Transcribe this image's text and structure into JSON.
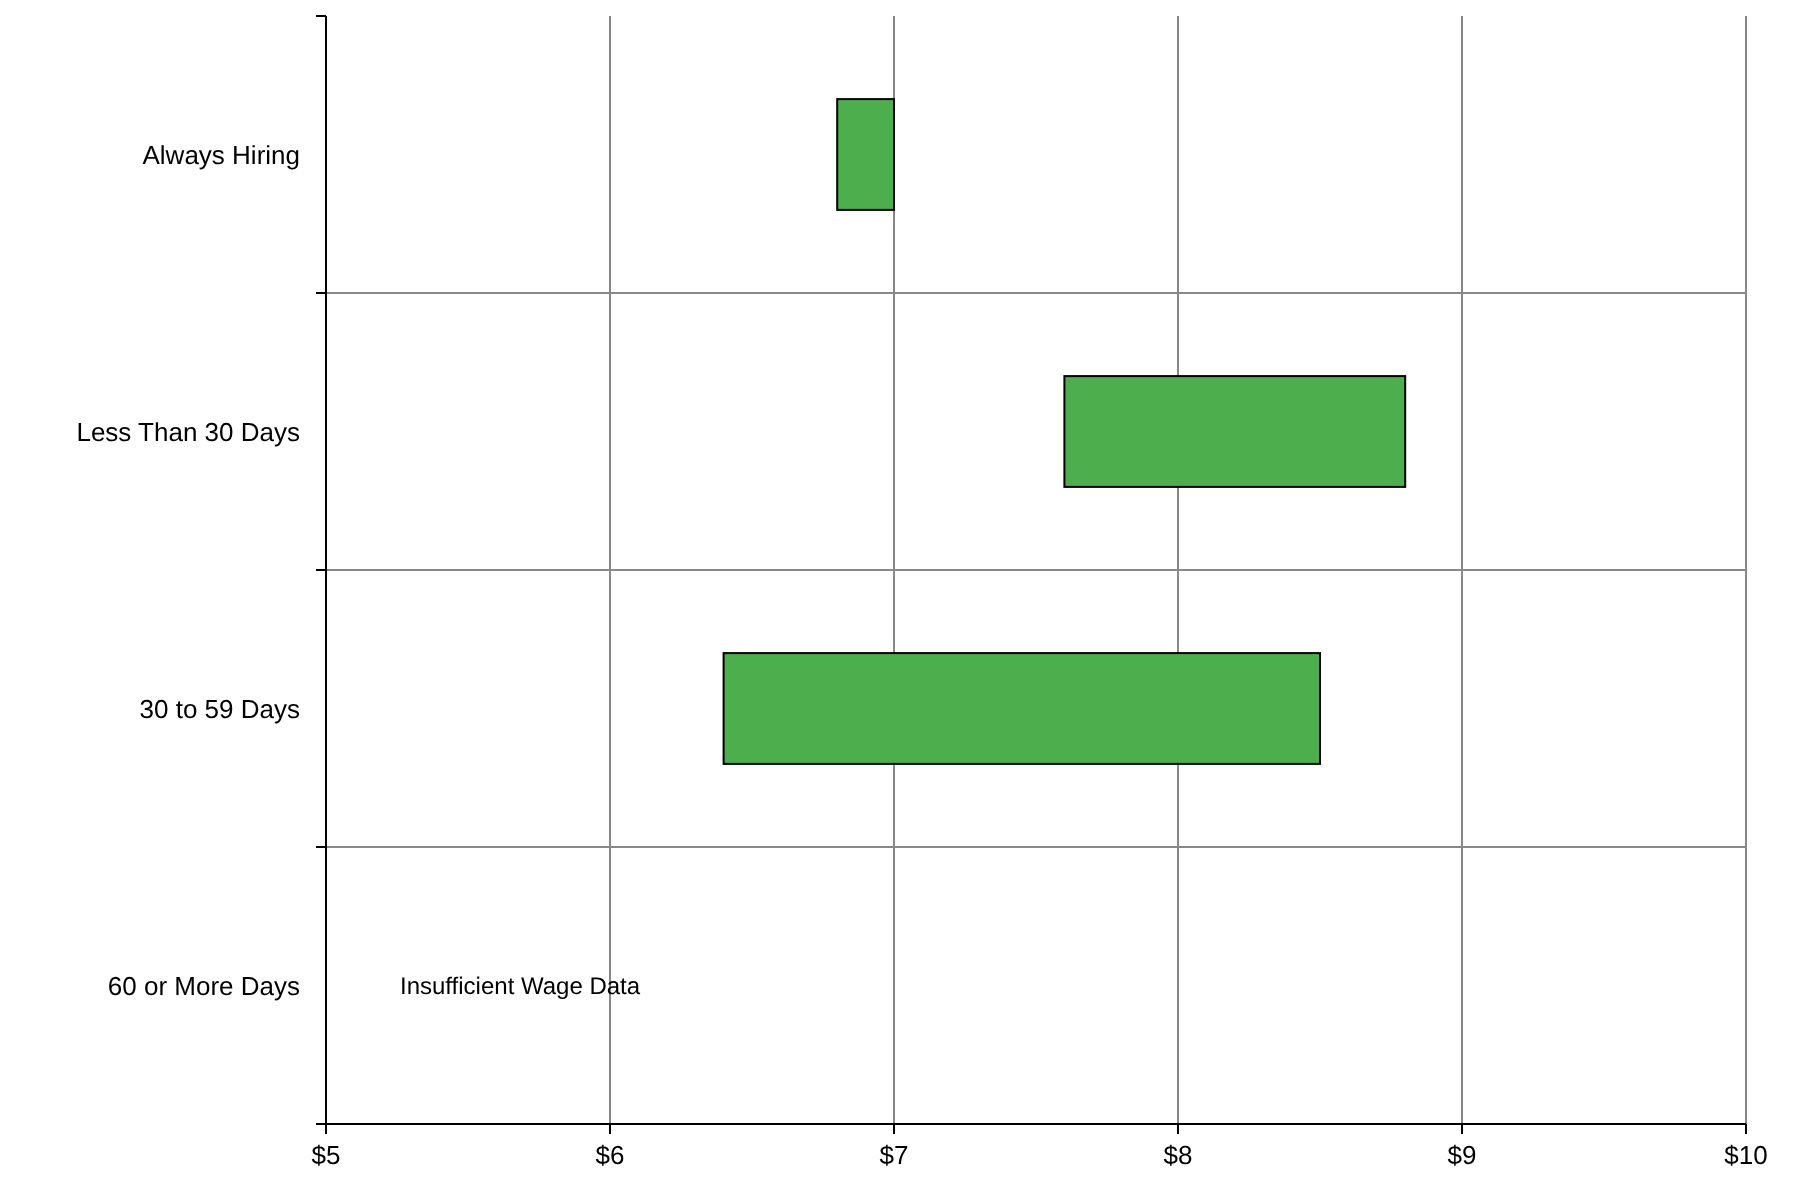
{
  "chart_data": {
    "type": "bar",
    "orientation": "horizontal",
    "categories": [
      "Always Hiring",
      "Less Than 30 Days",
      "30 to 59 Days",
      "60 or More Days"
    ],
    "base": [
      6.8,
      7.6,
      6.4,
      null
    ],
    "values": [
      0.2,
      1.2,
      2.1,
      null
    ],
    "color": "#4cae4c",
    "xlim": [
      5,
      10
    ],
    "xticks": [
      {
        "value": 5,
        "label": "$5"
      },
      {
        "value": 6,
        "label": "$6"
      },
      {
        "value": 7,
        "label": "$7"
      },
      {
        "value": 8,
        "label": "$8"
      },
      {
        "value": 9,
        "label": "$9"
      },
      {
        "value": 10,
        "label": "$10"
      }
    ],
    "grid": true,
    "annotations": [
      "Insufficient Wage Data"
    ]
  }
}
